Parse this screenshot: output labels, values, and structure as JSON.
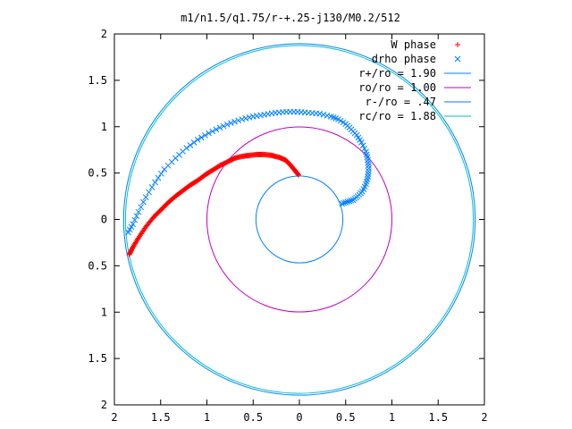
{
  "chart_data": {
    "type": "scatter",
    "title": "m1/n1.5/q1.75/r-+.25-j130/M0.2/512",
    "xlabel": "",
    "ylabel": "",
    "xlim": [
      -2,
      2
    ],
    "ylim": [
      -2,
      2
    ],
    "grid": false,
    "legend_position": "top-right",
    "x_ticks": [
      "2",
      "1.5",
      "1",
      "0.5",
      "0",
      "0.5",
      "1",
      "1.5",
      "2"
    ],
    "y_ticks": [
      "2",
      "1.5",
      "1",
      "0.5",
      "0",
      "0.5",
      "1",
      "1.5",
      "2"
    ],
    "series": [
      {
        "name": "W phase",
        "marker": "plus",
        "color": "#ff0000",
        "points": [
          [
            -0.01,
            0.48
          ],
          [
            -0.05,
            0.53
          ],
          [
            -0.1,
            0.59
          ],
          [
            -0.15,
            0.64
          ],
          [
            -0.22,
            0.67
          ],
          [
            -0.3,
            0.69
          ],
          [
            -0.38,
            0.7
          ],
          [
            -0.46,
            0.7
          ],
          [
            -0.54,
            0.69
          ],
          [
            -0.62,
            0.68
          ],
          [
            -0.7,
            0.66
          ],
          [
            -0.78,
            0.62
          ],
          [
            -0.86,
            0.58
          ],
          [
            -0.94,
            0.53
          ],
          [
            -1.02,
            0.48
          ],
          [
            -1.1,
            0.42
          ],
          [
            -1.18,
            0.37
          ],
          [
            -1.26,
            0.31
          ],
          [
            -1.34,
            0.25
          ],
          [
            -1.42,
            0.18
          ],
          [
            -1.5,
            0.1
          ],
          [
            -1.58,
            0.02
          ],
          [
            -1.66,
            -0.08
          ],
          [
            -1.74,
            -0.2
          ],
          [
            -1.8,
            -0.3
          ],
          [
            -1.84,
            -0.38
          ]
        ]
      },
      {
        "name": "drho phase",
        "marker": "cross",
        "color": "#0080ff",
        "points": [
          [
            0.46,
            0.17
          ],
          [
            0.52,
            0.19
          ],
          [
            0.58,
            0.21
          ],
          [
            0.63,
            0.25
          ],
          [
            0.68,
            0.3
          ],
          [
            0.72,
            0.38
          ],
          [
            0.74,
            0.46
          ],
          [
            0.75,
            0.55
          ],
          [
            0.74,
            0.64
          ],
          [
            0.72,
            0.73
          ],
          [
            0.67,
            0.83
          ],
          [
            0.62,
            0.91
          ],
          [
            0.56,
            0.97
          ],
          [
            0.5,
            1.03
          ],
          [
            0.42,
            1.08
          ],
          [
            0.34,
            1.11
          ],
          [
            0.22,
            1.14
          ],
          [
            0.1,
            1.15
          ],
          [
            -0.02,
            1.16
          ],
          [
            -0.14,
            1.16
          ],
          [
            -0.26,
            1.15
          ],
          [
            -0.38,
            1.13
          ],
          [
            -0.5,
            1.11
          ],
          [
            -0.62,
            1.08
          ],
          [
            -0.74,
            1.04
          ],
          [
            -0.86,
            0.99
          ],
          [
            -0.98,
            0.93
          ],
          [
            -1.1,
            0.86
          ],
          [
            -1.22,
            0.77
          ],
          [
            -1.34,
            0.66
          ],
          [
            -1.46,
            0.54
          ],
          [
            -1.56,
            0.4
          ],
          [
            -1.66,
            0.24
          ],
          [
            -1.74,
            0.08
          ],
          [
            -1.8,
            -0.05
          ],
          [
            -1.85,
            -0.14
          ]
        ]
      },
      {
        "name": "r+/ro = 1.90",
        "type": "circle",
        "radius": 1.9,
        "color": "#0080ff"
      },
      {
        "name": "ro/ro = 1.00",
        "type": "circle",
        "radius": 1.0,
        "color": "#c000c0"
      },
      {
        "name": "r-/ro = .47",
        "type": "circle",
        "radius": 0.47,
        "color": "#0080ff"
      },
      {
        "name": "rc/ro = 1.88",
        "type": "circle",
        "radius": 1.88,
        "color": "#00c0c0"
      }
    ]
  }
}
